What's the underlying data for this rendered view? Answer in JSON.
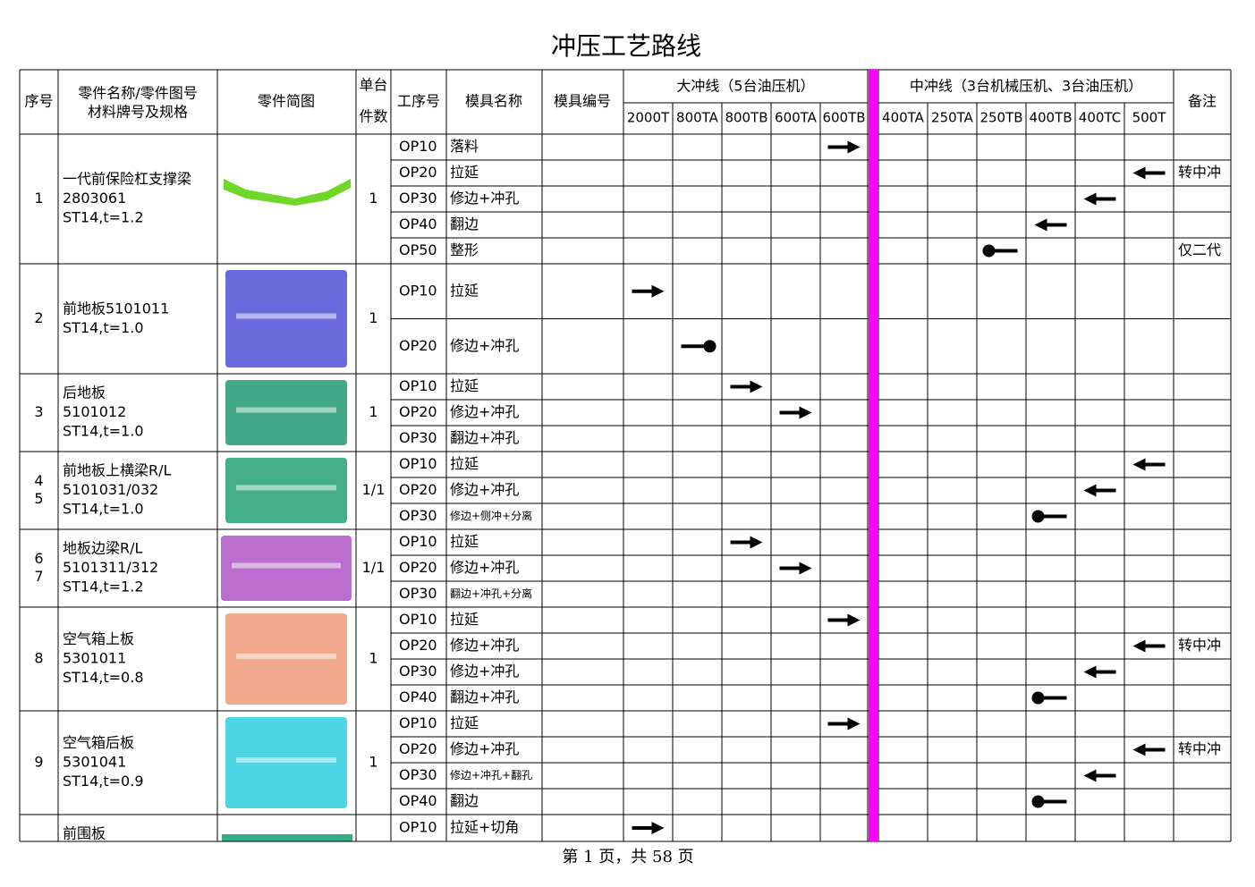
{
  "title": "冲压工艺路线",
  "header": {
    "no": "序号",
    "name": [
      "零件名称/零件图号",
      "材料牌号及规格"
    ],
    "sketch": "零件简图",
    "qty": [
      "单台",
      "件数"
    ],
    "op": "工序号",
    "die_name": "模具名称",
    "die_no": "模具编号",
    "remark": "备注"
  },
  "lines": [
    {
      "name": "大冲线（5台油压机）",
      "presses": [
        "2000T",
        "800TA",
        "800TB",
        "600TA",
        "600TB"
      ]
    },
    {
      "name": "中冲线（3台机械压机、3台油压机）",
      "presses": [
        "400TA",
        "250TA",
        "250TB",
        "400TB",
        "400TC",
        "500T"
      ]
    }
  ],
  "parts": [
    {
      "no": [
        "1"
      ],
      "name": [
        "一代前保险杠支撑梁",
        "2803061",
        "ST14,t=1.2"
      ],
      "qty": "1",
      "ops": [
        {
          "op": "OP10",
          "name": "落料",
          "press": "600TB",
          "symbol": "arrow-right"
        },
        {
          "op": "OP20",
          "name": "拉延",
          "press": "500T",
          "symbol": "arrow-left",
          "remark": "转中冲"
        },
        {
          "op": "OP30",
          "name": "修边+冲孔",
          "press": "400TC",
          "symbol": "arrow-left"
        },
        {
          "op": "OP40",
          "name": "翻边",
          "press": "400TB",
          "symbol": "arrow-left"
        },
        {
          "op": "OP50",
          "name": "整形",
          "press": "250TB",
          "symbol": "dot-line",
          "remark": "仅二代"
        }
      ]
    },
    {
      "no": [
        "2"
      ],
      "name": [
        "前地板5101011",
        "ST14,t=1.0"
      ],
      "qty": "1",
      "ops": [
        {
          "op": "OP10",
          "name": "拉延",
          "press": "2000T",
          "symbol": "arrow-right"
        },
        {
          "op": "OP20",
          "name": "修边+冲孔",
          "press": "800TA",
          "symbol": "line-dot"
        }
      ]
    },
    {
      "no": [
        "3"
      ],
      "name": [
        "后地板",
        "5101012",
        "ST14,t=1.0"
      ],
      "qty": "1",
      "ops": [
        {
          "op": "OP10",
          "name": "拉延",
          "press": "800TB",
          "symbol": "arrow-right"
        },
        {
          "op": "OP20",
          "name": "修边+冲孔",
          "press": "600TA",
          "symbol": "arrow-right"
        },
        {
          "op": "OP30",
          "name": "翻边+冲孔"
        }
      ]
    },
    {
      "no": [
        "4",
        "5"
      ],
      "name": [
        "前地板上横梁R/L",
        "5101031/032",
        "ST14,t=1.0"
      ],
      "qty": "1/1",
      "ops": [
        {
          "op": "OP10",
          "name": "拉延",
          "press": "500T",
          "symbol": "arrow-left"
        },
        {
          "op": "OP20",
          "name": "修边+冲孔",
          "press": "400TC",
          "symbol": "arrow-left"
        },
        {
          "op": "OP30",
          "name": "修边+侧冲+分离",
          "press": "400TB",
          "symbol": "dot-line"
        }
      ]
    },
    {
      "no": [
        "6",
        "7"
      ],
      "name": [
        "地板边梁R/L",
        "5101311/312",
        "ST14,t=1.2"
      ],
      "qty": "1/1",
      "ops": [
        {
          "op": "OP10",
          "name": "拉延",
          "press": "800TB",
          "symbol": "arrow-right"
        },
        {
          "op": "OP20",
          "name": "修边+冲孔",
          "press": "600TA",
          "symbol": "arrow-right"
        },
        {
          "op": "OP30",
          "name": "翻边+冲孔+分离"
        }
      ]
    },
    {
      "no": [
        "8"
      ],
      "name": [
        "空气箱上板",
        "5301011",
        "ST14,t=0.8"
      ],
      "qty": "1",
      "ops": [
        {
          "op": "OP10",
          "name": "拉延",
          "press": "600TB",
          "symbol": "arrow-right"
        },
        {
          "op": "OP20",
          "name": "修边+冲孔",
          "press": "500T",
          "symbol": "arrow-left",
          "remark": "转中冲"
        },
        {
          "op": "OP30",
          "name": "修边+冲孔",
          "press": "400TC",
          "symbol": "arrow-left"
        },
        {
          "op": "OP40",
          "name": "翻边+冲孔",
          "press": "400TB",
          "symbol": "dot-line"
        }
      ]
    },
    {
      "no": [
        "9"
      ],
      "name": [
        "空气箱后板",
        "5301041",
        "ST14,t=0.9"
      ],
      "qty": "1",
      "ops": [
        {
          "op": "OP10",
          "name": "拉延",
          "press": "600TB",
          "symbol": "arrow-right"
        },
        {
          "op": "OP20",
          "name": "修边+冲孔",
          "press": "500T",
          "symbol": "arrow-left",
          "remark": "转中冲"
        },
        {
          "op": "OP30",
          "name": "修边+冲孔+翻孔",
          "press": "400TC",
          "symbol": "arrow-left"
        },
        {
          "op": "OP40",
          "name": "翻边",
          "press": "400TB",
          "symbol": "dot-line"
        }
      ]
    },
    {
      "no": [],
      "name": [
        "前围板"
      ],
      "ops": [
        {
          "op": "OP10",
          "name": "拉延+切角",
          "press": "2000T",
          "symbol": "arrow-right"
        }
      ]
    }
  ],
  "footer": "第 1 页，共 58 页"
}
